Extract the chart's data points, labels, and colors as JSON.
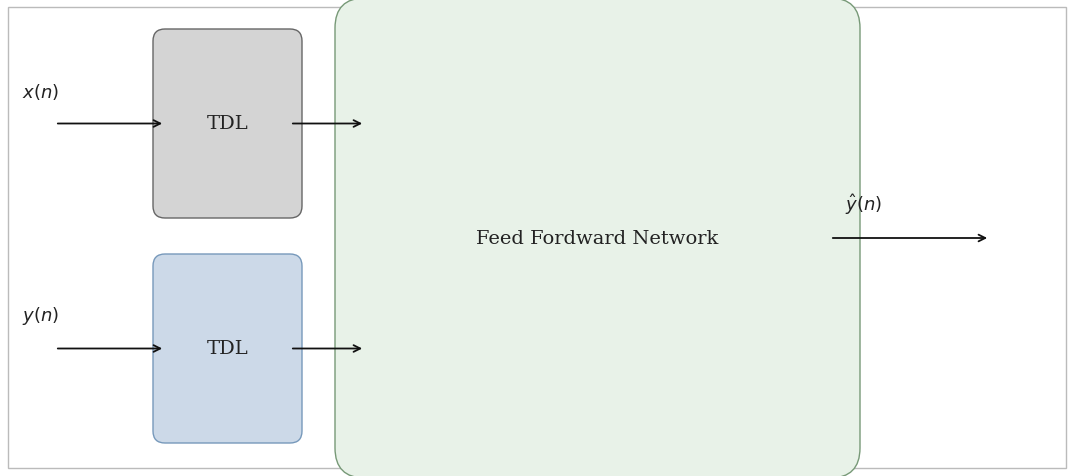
{
  "bg_color": "#ffffff",
  "border_color": "#bbbbbb",
  "tdl_gray_facecolor": "#d4d4d4",
  "tdl_gray_edgecolor": "#666666",
  "tdl_blue_facecolor": "#ccd9e8",
  "tdl_blue_edgecolor": "#7799bb",
  "ffn_facecolor": "#e8f2e8",
  "ffn_edgecolor": "#779977",
  "text_color": "#222222",
  "arrow_color": "#111111",
  "label_xn": "$x(n)$",
  "label_yn": "$y(n)$",
  "label_yhat": "$\\hat{y}(n)$",
  "label_tdl": "TDL",
  "label_ffn": "Feed Fordward Network",
  "figsize": [
    10.74,
    4.77
  ],
  "dpi": 100,
  "xlim": [
    0,
    10.74
  ],
  "ylim": [
    0,
    4.77
  ]
}
